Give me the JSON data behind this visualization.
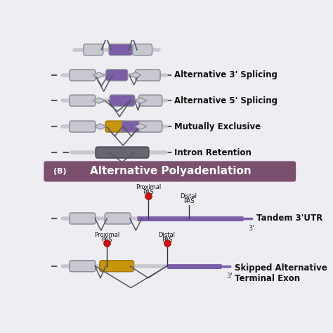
{
  "bg_color": "#ededf2",
  "exon_color": "#c8c8d0",
  "exon_stroke": "#888898",
  "purple_exon": "#7b5ea7",
  "gold_exon": "#c8960c",
  "dark_exon": "#666670",
  "header_bg": "#7b4f6e",
  "header_text": "#ffffff",
  "red_dot": "#cc1111",
  "purple_utr": "#7b5ea7",
  "label_color": "#111111",
  "splice_color": "#555565",
  "labels": [
    "Alternative 3' Splicing",
    "Alternative 5' Splicing",
    "Mutually Exclusive",
    "Intron Retention"
  ],
  "polya_labels": [
    "Tandem 3'UTR",
    "Skipped Alternative\nTerminal Exon"
  ],
  "header_label": "Alternative Polyadenlation",
  "header_tag": "(B)"
}
